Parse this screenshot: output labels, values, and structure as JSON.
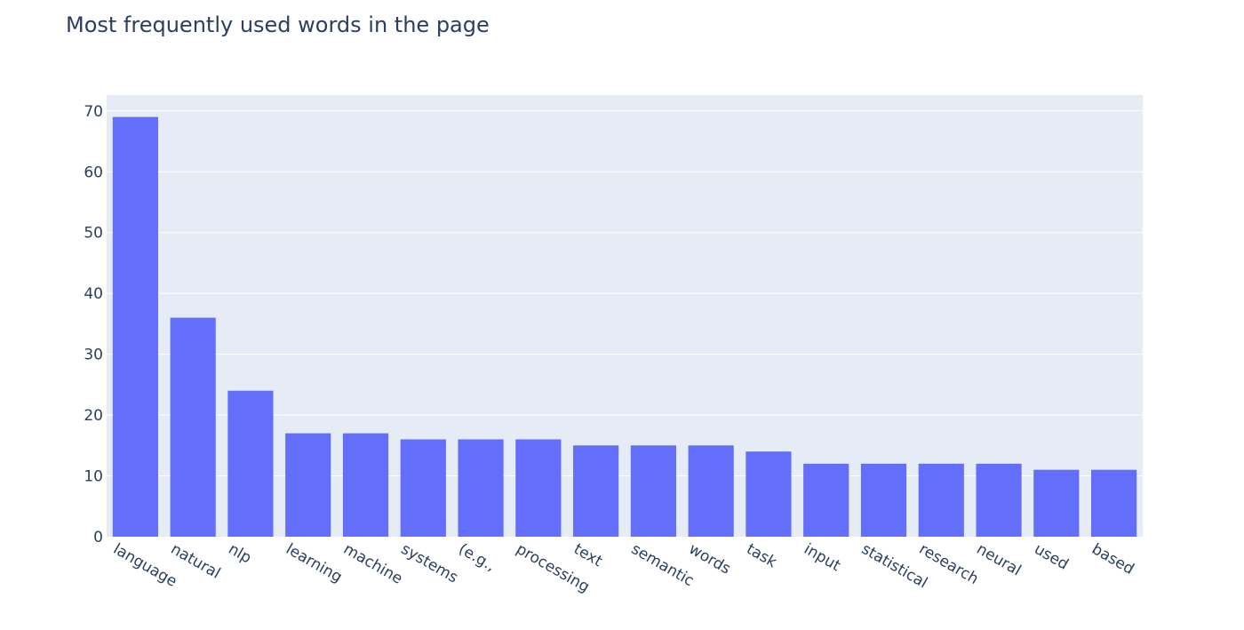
{
  "chart_data": {
    "type": "bar",
    "title": "Most frequently used words in the page",
    "xlabel": "",
    "ylabel": "",
    "categories": [
      "language",
      "natural",
      "nlp",
      "learning",
      "machine",
      "systems",
      "(e.g.,",
      "processing",
      "text",
      "semantic",
      "words",
      "task",
      "input",
      "statistical",
      "research",
      "neural",
      "used",
      "based"
    ],
    "values": [
      69,
      36,
      24,
      17,
      17,
      16,
      16,
      16,
      15,
      15,
      15,
      14,
      12,
      12,
      12,
      12,
      11,
      11
    ],
    "ylim": [
      0,
      72.6
    ],
    "yticks": [
      0,
      10,
      20,
      30,
      40,
      50,
      60,
      70
    ],
    "grid": true,
    "bar_color": "#636efa",
    "plot_background": "#e5ecf6"
  }
}
